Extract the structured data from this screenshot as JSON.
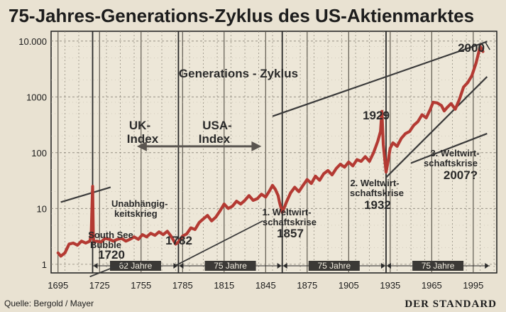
{
  "chart_data": {
    "type": "line",
    "title": "75-Jahres-Generations-Zyklus des US-Aktienmarktes",
    "subtitle": "Generations - Zyklus",
    "y_scale": "log",
    "ylim": [
      0.7,
      15000
    ],
    "xlim": [
      1690,
      2012
    ],
    "x_ticks": [
      1695,
      1725,
      1755,
      1785,
      1815,
      1845,
      1875,
      1905,
      1935,
      1965,
      1995
    ],
    "y_ticks": [
      {
        "value": 1,
        "label": "1"
      },
      {
        "value": 10,
        "label": "10"
      },
      {
        "value": 100,
        "label": "100"
      },
      {
        "value": 1000,
        "label": "1000"
      },
      {
        "value": 10000,
        "label": "10.000"
      }
    ],
    "series_color": "#b43a33",
    "series": [
      {
        "x": [
          1695,
          1697,
          1700,
          1703,
          1706,
          1709,
          1712,
          1715,
          1718,
          1719,
          1720,
          1720.5,
          1721,
          1723,
          1726,
          1729,
          1732,
          1735,
          1738,
          1741,
          1744,
          1747,
          1750,
          1753,
          1756,
          1759,
          1762,
          1765,
          1768,
          1771,
          1774,
          1777,
          1780,
          1782,
          1785,
          1788,
          1791,
          1794,
          1797,
          1800,
          1803,
          1806,
          1809,
          1812,
          1815,
          1818,
          1821,
          1824,
          1827,
          1830,
          1833,
          1836,
          1839,
          1842,
          1845,
          1848,
          1850,
          1852,
          1854,
          1855,
          1857,
          1860,
          1863,
          1866,
          1869,
          1872,
          1875,
          1878,
          1881,
          1884,
          1887,
          1890,
          1893,
          1896,
          1899,
          1902,
          1905,
          1908,
          1911,
          1914,
          1917,
          1920,
          1923,
          1926,
          1928,
          1929,
          1930,
          1931,
          1932,
          1933,
          1935,
          1937,
          1940,
          1943,
          1946,
          1949,
          1952,
          1955,
          1958,
          1961,
          1964,
          1966,
          1969,
          1972,
          1974,
          1976,
          1979,
          1982,
          1985,
          1988,
          1991,
          1994,
          1997,
          2000,
          2002
        ],
        "y": [
          1.6,
          1.4,
          1.6,
          2.3,
          2.4,
          2.2,
          2.6,
          2.4,
          2.6,
          3.5,
          25,
          3.0,
          2.5,
          2.6,
          2.5,
          2.9,
          2.8,
          2.6,
          2.8,
          2.9,
          2.6,
          2.8,
          3.1,
          2.8,
          3.4,
          3.1,
          3.6,
          3.3,
          3.8,
          3.4,
          3.9,
          3.1,
          2.3,
          2.5,
          3.2,
          3.5,
          4.5,
          4.2,
          5.6,
          6.5,
          7.5,
          6.0,
          7.0,
          9.0,
          12.0,
          10.0,
          11.0,
          13.5,
          12.0,
          14.0,
          17.0,
          14.0,
          15.0,
          18.0,
          16.0,
          21.0,
          26.0,
          22.0,
          17.0,
          13.0,
          8.5,
          13.0,
          19.0,
          24.0,
          20.0,
          26.0,
          33.0,
          28.0,
          38.0,
          32.0,
          42.0,
          48.0,
          40.0,
          52.0,
          62.0,
          55.0,
          68.0,
          58.0,
          75.0,
          70.0,
          85.0,
          70.0,
          100.0,
          160.0,
          240.0,
          550.0,
          140.0,
          80.0,
          45.0,
          60.0,
          120.0,
          150.0,
          130.0,
          180.0,
          220.0,
          240.0,
          310.0,
          360.0,
          480.0,
          420.0,
          600.0,
          800.0,
          780.0,
          700.0,
          560.0,
          640.0,
          760.0,
          600.0,
          900.0,
          1500.0,
          1800.0,
          2400.0,
          4000.0,
          8000.0,
          6500.0
        ]
      }
    ],
    "periods": [
      {
        "label": "62 Jahre",
        "from": 1720,
        "to": 1782
      },
      {
        "label": "75 Jahre",
        "from": 1782,
        "to": 1857
      },
      {
        "label": "75 Jahre",
        "from": 1857,
        "to": 1932
      },
      {
        "label": "75 Jahre",
        "from": 1932,
        "to": 2007
      }
    ],
    "annotations": {
      "uk_index": [
        "UK-",
        "Index"
      ],
      "usa_index": [
        "USA-",
        "Index"
      ],
      "year_2000": "2000",
      "year_1929": "1929",
      "krise_1": [
        "1. Weltwirt-",
        "schaftskrise"
      ],
      "krise_1_year": "1857",
      "krise_2": [
        "2. Weltwirt-",
        "schaftskrise"
      ],
      "krise_2_year": "1932",
      "krise_3": [
        "3. Weltwirt-",
        "schaftskrise"
      ],
      "krise_3_year": "2007?",
      "unabhaengigkeit": [
        "Unabhängig-",
        "keitskrieg"
      ],
      "south_sea": [
        "South See",
        "Bubble"
      ],
      "year_1720": "1720",
      "year_1782": "1782"
    }
  },
  "footer": {
    "source": "Quelle: Bergold / Mayer",
    "brand": "DER STANDARD"
  },
  "colors": {
    "background": "#e9e2d2",
    "plot_background": "#ede7d8",
    "grid": "#8a8478",
    "trend_line": "#3a3a3a"
  }
}
